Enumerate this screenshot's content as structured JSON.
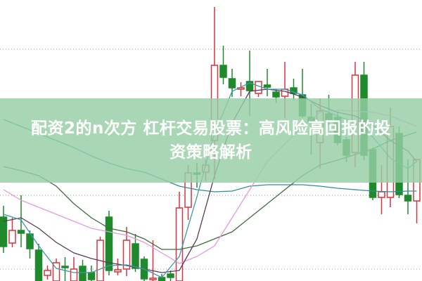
{
  "title": {
    "line1": "配资2的n次方 杠杆交易股票：高风险高回报的投",
    "line2": "资策略解析"
  },
  "colors": {
    "up": "#d9333f",
    "down": "#1e8a2c",
    "banner": "#96cea6",
    "ma5": "#3a9aa8",
    "ma10": "#5a3a5a",
    "ma20": "#e69ae0",
    "ma30": "#3e6e3a",
    "ma60": "#2a8f9a",
    "grid": "#999999"
  },
  "chart_data": {
    "type": "candlestick",
    "title": "",
    "xlabel": "",
    "ylabel": "",
    "ylim": [
      0,
      40
    ],
    "grid": "horizontal dotted",
    "grid_levels": [
      33.0,
      12.2,
      1.7
    ],
    "candles": [
      {
        "o": 9.1,
        "h": 10.7,
        "l": 4.0,
        "c": 4.9
      },
      {
        "o": 5.4,
        "h": 9.0,
        "l": 4.8,
        "c": 7.2
      },
      {
        "o": 7.2,
        "h": 12.2,
        "l": 4.8,
        "c": 6.8
      },
      {
        "o": 6.7,
        "h": 7.2,
        "l": 3.2,
        "c": 4.6
      },
      {
        "o": 4.4,
        "h": 5.3,
        "l": 0.0,
        "c": 0.0
      },
      {
        "o": 0.8,
        "h": 2.2,
        "l": 0.2,
        "c": 1.5
      },
      {
        "o": 0.0,
        "h": 3.2,
        "l": 0.0,
        "c": 2.6
      },
      {
        "o": 2.1,
        "h": 3.4,
        "l": 0.0,
        "c": 1.9
      },
      {
        "o": 0.0,
        "h": 3.4,
        "l": 0.0,
        "c": 1.7
      },
      {
        "o": 2.1,
        "h": 3.0,
        "l": 0.0,
        "c": 0.0
      },
      {
        "o": 1.2,
        "h": 2.2,
        "l": 0.0,
        "c": 0.2
      },
      {
        "o": 0.0,
        "h": 6.3,
        "l": 0.0,
        "c": 5.8
      },
      {
        "o": 9.1,
        "h": 10.0,
        "l": 0.8,
        "c": 1.5
      },
      {
        "o": 1.3,
        "h": 3.2,
        "l": 0.8,
        "c": 1.6
      },
      {
        "o": 1.7,
        "h": 7.7,
        "l": 0.7,
        "c": 5.8
      },
      {
        "o": 5.3,
        "h": 6.7,
        "l": 1.3,
        "c": 1.8
      },
      {
        "o": 3.1,
        "h": 3.5,
        "l": 0.0,
        "c": 0.3
      },
      {
        "o": 0.3,
        "h": 5.8,
        "l": 0.0,
        "c": 0.4
      },
      {
        "o": 0.5,
        "h": 1.0,
        "l": 0.0,
        "c": 0.0
      },
      {
        "o": 1.0,
        "h": 1.5,
        "l": 0.0,
        "c": 0.5
      },
      {
        "o": 0.0,
        "h": 12.7,
        "l": 0.0,
        "c": 10.4
      },
      {
        "o": 10.5,
        "h": 16.5,
        "l": 8.7,
        "c": 15.4
      },
      {
        "o": 15.4,
        "h": 16.8,
        "l": 13.3,
        "c": 15.2
      },
      {
        "o": 15.5,
        "h": 17.3,
        "l": 14.2,
        "c": 16.5
      },
      {
        "o": 20.0,
        "h": 39.0,
        "l": 14.5,
        "c": 30.7
      },
      {
        "o": 30.7,
        "h": 33.5,
        "l": 28.0,
        "c": 29.0
      },
      {
        "o": 28.8,
        "h": 30.2,
        "l": 26.2,
        "c": 27.5
      },
      {
        "o": 27.4,
        "h": 28.3,
        "l": 26.3,
        "c": 27.5
      },
      {
        "o": 28.4,
        "h": 32.8,
        "l": 23.5,
        "c": 27.1
      },
      {
        "o": 26.7,
        "h": 28.4,
        "l": 26.2,
        "c": 28.4
      },
      {
        "o": 27.9,
        "h": 30.2,
        "l": 26.3,
        "c": 27.6
      },
      {
        "o": 26.9,
        "h": 27.3,
        "l": 25.3,
        "c": 26.2
      },
      {
        "o": 26.3,
        "h": 31.2,
        "l": 23.2,
        "c": 27.3
      },
      {
        "o": 27.5,
        "h": 28.8,
        "l": 25.7,
        "c": 26.7
      },
      {
        "o": 26.5,
        "h": 30.2,
        "l": 23.2,
        "c": 23.5
      },
      {
        "o": 23.3,
        "h": 25.2,
        "l": 18.0,
        "c": 22.7
      },
      {
        "o": 19.7,
        "h": 26.0,
        "l": 16.0,
        "c": 24.2
      },
      {
        "o": 23.8,
        "h": 26.5,
        "l": 22.2,
        "c": 23.0
      },
      {
        "o": 23.3,
        "h": 24.0,
        "l": 19.3,
        "c": 19.7
      },
      {
        "o": 20.1,
        "h": 20.5,
        "l": 16.9,
        "c": 17.9
      },
      {
        "o": 18.3,
        "h": 31.2,
        "l": 16.2,
        "c": 29.3
      },
      {
        "o": 29.3,
        "h": 31.2,
        "l": 17.2,
        "c": 17.9
      },
      {
        "o": 18.7,
        "h": 19.0,
        "l": 11.5,
        "c": 11.9
      },
      {
        "o": 11.9,
        "h": 16.5,
        "l": 9.5,
        "c": 12.7
      },
      {
        "o": 11.9,
        "h": 24.7,
        "l": 10.5,
        "c": 22.0
      },
      {
        "o": 21.0,
        "h": 22.0,
        "l": 11.8,
        "c": 12.3
      },
      {
        "o": 12.2,
        "h": 17.3,
        "l": 9.5,
        "c": 11.4
      },
      {
        "o": 11.4,
        "h": 17.3,
        "l": 8.2,
        "c": 17.3
      }
    ],
    "ma_index": [
      0,
      2,
      4,
      6,
      8,
      10,
      12,
      14,
      16,
      18,
      20,
      22,
      24,
      26,
      28,
      30,
      32,
      34,
      36,
      38,
      40,
      42,
      44,
      46,
      47
    ],
    "moving_averages": [
      {
        "key": "ma60",
        "values": [
          23.0,
          22.0,
          21.0,
          20.0,
          19.0,
          17.8,
          16.8,
          16.0,
          15.5,
          14.5,
          13.5,
          13.0,
          12.7,
          12.8,
          13.5,
          13.7,
          13.7,
          13.7,
          13.5,
          13.2,
          13.0,
          12.8,
          12.7,
          12.8,
          12.8
        ]
      },
      {
        "key": "ma30",
        "values": [
          16.3,
          15.7,
          15.0,
          13.5,
          11.0,
          9.0,
          7.5,
          7.0,
          6.0,
          4.5,
          4.5,
          5.0,
          6.0,
          7.0,
          9.0,
          11.0,
          13.0,
          15.0,
          16.5,
          17.2,
          18.0,
          18.8,
          20.0,
          20.8,
          21.2
        ]
      },
      {
        "key": "ma20",
        "values": [
          13.0,
          11.5,
          10.5,
          9.5,
          8.5,
          7.5,
          7.0,
          6.5,
          5.5,
          4.0,
          2.5,
          3.5,
          5.0,
          9.0,
          13.0,
          17.0,
          19.5,
          22.0,
          24.0,
          24.3,
          24.2,
          24.0,
          23.5,
          22.5,
          22.0
        ]
      },
      {
        "key": "ma10",
        "values": [
          8.5,
          9.0,
          7.5,
          5.5,
          4.0,
          3.2,
          2.6,
          2.2,
          1.7,
          1.2,
          1.5,
          6.0,
          15.0,
          22.5,
          27.0,
          27.3,
          27.0,
          26.2,
          25.0,
          24.0,
          23.5,
          22.2,
          20.0,
          18.5,
          17.0
        ]
      },
      {
        "key": "ma5",
        "values": [
          9.5,
          8.7,
          5.0,
          1.8,
          1.2,
          1.2,
          2.2,
          2.3,
          1.7,
          0.5,
          3.5,
          12.0,
          21.0,
          27.0,
          28.2,
          27.3,
          27.3,
          26.5,
          24.5,
          23.5,
          22.5,
          20.5,
          17.5,
          16.0,
          17.0
        ]
      }
    ]
  }
}
